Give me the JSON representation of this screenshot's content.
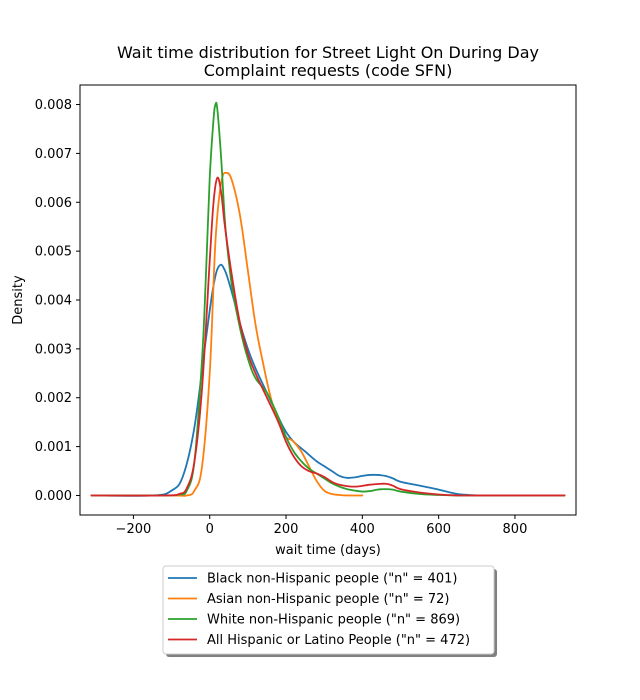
{
  "chart_data": {
    "type": "line",
    "title_lines": [
      "Wait time distribution  for Street Light On During Day",
      "Complaint requests (code SFN)"
    ],
    "xlabel": "wait time (days)",
    "ylabel": "Density",
    "xlim": [
      -340,
      960
    ],
    "ylim": [
      -0.0004,
      0.0084
    ],
    "xticks": [
      -200,
      0,
      200,
      400,
      600,
      800
    ],
    "xtick_labels": [
      "−200",
      "0",
      "200",
      "400",
      "600",
      "800"
    ],
    "yticks": [
      0.0,
      0.001,
      0.002,
      0.003,
      0.004,
      0.005,
      0.006,
      0.007,
      0.008
    ],
    "ytick_labels": [
      "0.000",
      "0.001",
      "0.002",
      "0.003",
      "0.004",
      "0.005",
      "0.006",
      "0.007",
      "0.008"
    ],
    "grid": false,
    "legend_position": "below",
    "series": [
      {
        "name": "Black non-Hispanic people (\"n\" = 401)",
        "color": "#1f77b4",
        "x": [
          -310,
          -150,
          -100,
          -70,
          -40,
          -10,
          10,
          25,
          40,
          60,
          80,
          100,
          120,
          150,
          180,
          200,
          220,
          250,
          280,
          300,
          320,
          340,
          360,
          380,
          400,
          420,
          440,
          460,
          480,
          500,
          550,
          600,
          620,
          650,
          680,
          700,
          750,
          800,
          850,
          930
        ],
        "y": [
          0,
          0,
          0.0001,
          0.0004,
          0.0014,
          0.0032,
          0.0043,
          0.0047,
          0.0046,
          0.0041,
          0.0035,
          0.003,
          0.0026,
          0.0021,
          0.0016,
          0.0013,
          0.0011,
          0.0009,
          0.0007,
          0.0006,
          0.0005,
          0.0004,
          0.00036,
          0.00037,
          0.0004,
          0.00042,
          0.00042,
          0.0004,
          0.00035,
          0.00028,
          0.0002,
          0.00012,
          8e-05,
          3e-05,
          1e-05,
          0,
          0,
          0,
          0,
          0
        ]
      },
      {
        "name": "Asian non-Hispanic people (\"n\" = 72)",
        "color": "#ff7f0e",
        "x": [
          -310,
          -100,
          -60,
          -40,
          -20,
          0,
          15,
          30,
          45,
          60,
          80,
          100,
          120,
          140,
          160,
          180,
          200,
          210,
          220,
          240,
          260,
          280,
          300,
          320,
          340,
          360,
          400
        ],
        "y": [
          0,
          0,
          0,
          0.0001,
          0.0006,
          0.0025,
          0.0052,
          0.0064,
          0.0066,
          0.0064,
          0.0057,
          0.0046,
          0.0035,
          0.0027,
          0.002,
          0.0015,
          0.0012,
          0.00115,
          0.0011,
          0.0009,
          0.0006,
          0.0003,
          0.0001,
          3e-05,
          1e-05,
          0,
          0
        ]
      },
      {
        "name": "White non-Hispanic people (\"n\" = 869)",
        "color": "#2ca02c",
        "x": [
          -310,
          -120,
          -80,
          -60,
          -40,
          -20,
          -10,
          0,
          10,
          15,
          20,
          30,
          40,
          50,
          60,
          80,
          100,
          120,
          150,
          180,
          200,
          220,
          240,
          260,
          280,
          300,
          320,
          340,
          360,
          380,
          400,
          420,
          440,
          460,
          480,
          500,
          550,
          600,
          650,
          700,
          930
        ],
        "y": [
          0,
          0,
          2e-05,
          0.0001,
          0.0007,
          0.0028,
          0.0045,
          0.0065,
          0.0077,
          0.008,
          0.0079,
          0.0069,
          0.0056,
          0.0048,
          0.0042,
          0.0034,
          0.0028,
          0.0024,
          0.0021,
          0.0016,
          0.0012,
          0.0009,
          0.0007,
          0.00055,
          0.00045,
          0.00035,
          0.00025,
          0.00018,
          0.00013,
          0.0001,
          8e-05,
          9e-05,
          0.00012,
          0.00013,
          0.00012,
          8e-05,
          3e-05,
          1e-05,
          0,
          0,
          0
        ]
      },
      {
        "name": "All Hispanic or Latino People (\"n\" = 472)",
        "color": "#d62728",
        "x": [
          -310,
          -120,
          -80,
          -60,
          -40,
          -20,
          0,
          10,
          20,
          30,
          40,
          60,
          80,
          100,
          120,
          150,
          180,
          200,
          220,
          240,
          260,
          280,
          300,
          320,
          340,
          380,
          420,
          460,
          480,
          500,
          550,
          600,
          650,
          700,
          930
        ],
        "y": [
          0,
          0,
          3e-05,
          0.00015,
          0.0007,
          0.0022,
          0.0048,
          0.006,
          0.0065,
          0.0062,
          0.0055,
          0.0044,
          0.0035,
          0.0029,
          0.0025,
          0.002,
          0.0015,
          0.0011,
          0.0008,
          0.0006,
          0.0005,
          0.00045,
          0.00038,
          0.00028,
          0.00022,
          0.00018,
          0.00022,
          0.00024,
          0.0002,
          0.00013,
          6e-05,
          2e-05,
          0,
          0,
          0
        ]
      }
    ]
  }
}
